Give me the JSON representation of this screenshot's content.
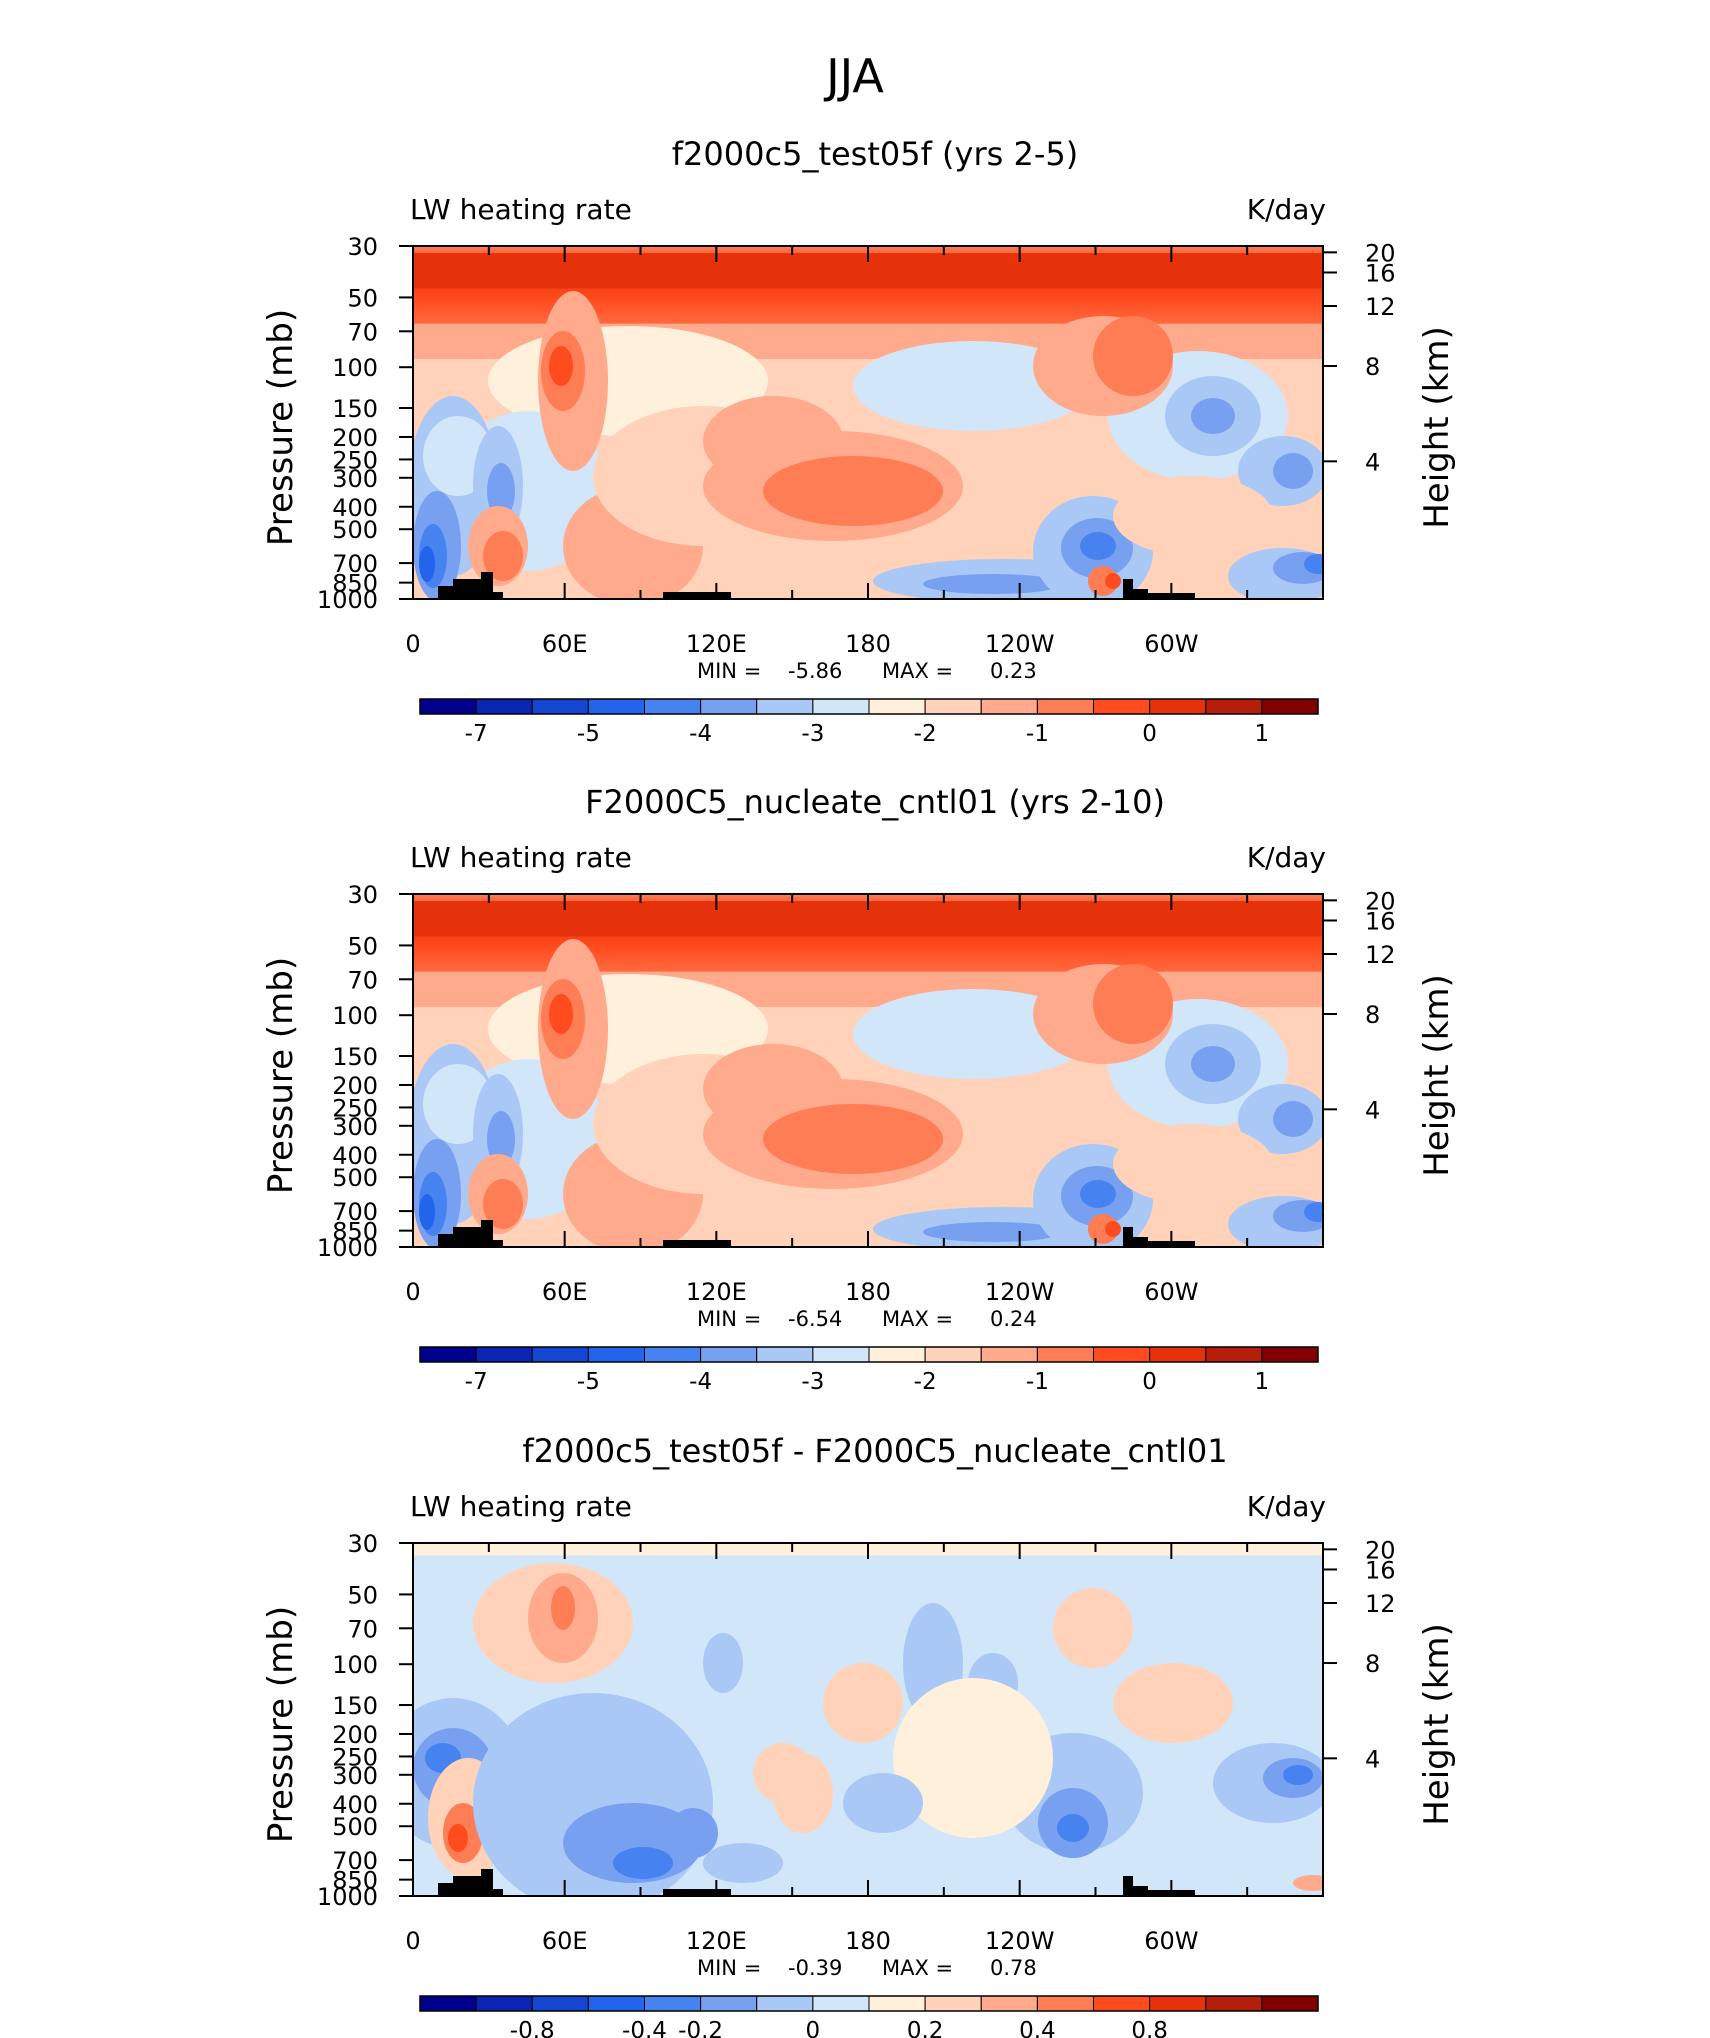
{
  "figure_title": "JJA",
  "chart_data": [
    {
      "type": "heatmap",
      "title": "f2000c5_test05f (yrs 2-5)",
      "left_label": "LW heating rate",
      "right_label": "K/day",
      "ylabel": "Pressure (mb)",
      "ylabel_right": "Height (km)",
      "xticks": [
        "0",
        "60E",
        "120E",
        "180",
        "120W",
        "60W"
      ],
      "yticks": [
        "30",
        "50",
        "70",
        "100",
        "150",
        "200",
        "250",
        "300",
        "400",
        "500",
        "700",
        "850",
        "1000"
      ],
      "yticks_right": [
        "20",
        "16",
        "12",
        "8",
        "4"
      ],
      "min_label": "MIN =",
      "min_value": "-5.86",
      "max_label": "MAX =",
      "max_value": "0.23",
      "colorbar_labels": [
        "-7",
        "-5",
        "-4",
        "-3",
        "-2",
        "-1",
        "0",
        "1"
      ],
      "ylim": [
        1000,
        30
      ]
    },
    {
      "type": "heatmap",
      "title": "F2000C5_nucleate_cntl01 (yrs 2-10)",
      "left_label": "LW heating rate",
      "right_label": "K/day",
      "ylabel": "Pressure (mb)",
      "ylabel_right": "Height (km)",
      "xticks": [
        "0",
        "60E",
        "120E",
        "180",
        "120W",
        "60W"
      ],
      "yticks": [
        "30",
        "50",
        "70",
        "100",
        "150",
        "200",
        "250",
        "300",
        "400",
        "500",
        "700",
        "850",
        "1000"
      ],
      "yticks_right": [
        "20",
        "16",
        "12",
        "8",
        "4"
      ],
      "min_label": "MIN =",
      "min_value": "-6.54",
      "max_label": "MAX =",
      "max_value": "0.24",
      "colorbar_labels": [
        "-7",
        "-5",
        "-4",
        "-3",
        "-2",
        "-1",
        "0",
        "1"
      ],
      "ylim": [
        1000,
        30
      ]
    },
    {
      "type": "heatmap",
      "title": "f2000c5_test05f - F2000C5_nucleate_cntl01",
      "left_label": "LW heating rate",
      "right_label": "K/day",
      "ylabel": "Pressure (mb)",
      "ylabel_right": "Height (km)",
      "xticks": [
        "0",
        "60E",
        "120E",
        "180",
        "120W",
        "60W"
      ],
      "yticks": [
        "30",
        "50",
        "70",
        "100",
        "150",
        "200",
        "250",
        "300",
        "400",
        "500",
        "700",
        "850",
        "1000"
      ],
      "yticks_right": [
        "20",
        "16",
        "12",
        "8",
        "4"
      ],
      "min_label": "MIN =",
      "min_value": "-0.39",
      "max_label": "MAX =",
      "max_value": "0.78",
      "colorbar_labels": [
        "-0.8",
        "-0.4",
        "-0.2",
        "0",
        "0.2",
        "0.4",
        "0.8"
      ],
      "ylim": [
        1000,
        30
      ]
    }
  ],
  "colorbar_colors": [
    "#00008c",
    "#0a24b4",
    "#1446d2",
    "#2264eb",
    "#4682f0",
    "#78a0f0",
    "#aac8f5",
    "#d2e6fa",
    "#fff0dc",
    "#ffd2b9",
    "#ffaa8c",
    "#ff7d55",
    "#ff4b1e",
    "#e6320a",
    "#b41e0a",
    "#820000"
  ]
}
